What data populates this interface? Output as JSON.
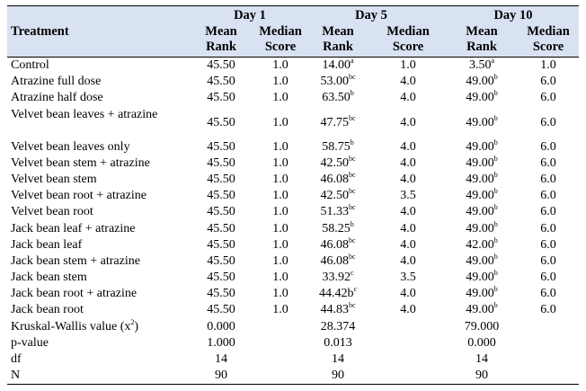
{
  "header": {
    "treatment": "Treatment",
    "day1": "Day 1",
    "day5": "Day 5",
    "day10": "Day 10",
    "mean_rank": "Mean Rank",
    "median_score": "Median Score"
  },
  "rows": [
    {
      "name": "Control",
      "d1_mean": "45.50",
      "d1_med": "1.0",
      "d5_mean": "14.00",
      "d5_sup": "a",
      "d5_med": "1.0",
      "d10_mean": "3.50",
      "d10_sup": "a",
      "d10_med": "1.0"
    },
    {
      "name": "Atrazine full dose",
      "d1_mean": "45.50",
      "d1_med": "1.0",
      "d5_mean": "53.00",
      "d5_sup": "bc",
      "d5_med": "4.0",
      "d10_mean": "49.00",
      "d10_sup": "b",
      "d10_med": "6.0"
    },
    {
      "name": "Atrazine half dose",
      "d1_mean": "45.50",
      "d1_med": "1.0",
      "d5_mean": "63.50",
      "d5_sup": "b",
      "d5_med": "4.0",
      "d10_mean": "49.00",
      "d10_sup": "b",
      "d10_med": "6.0"
    },
    {
      "name": "Velvet bean leaves + atrazine",
      "d1_mean": "45.50",
      "d1_med": "1.0",
      "d5_mean": "47.75",
      "d5_sup": "bc",
      "d5_med": "4.0",
      "d10_mean": "49.00",
      "d10_sup": "b",
      "d10_med": "6.0"
    },
    {
      "name": "Velvet bean leaves only",
      "d1_mean": "45.50",
      "d1_med": "1.0",
      "d5_mean": "58.75",
      "d5_sup": "b",
      "d5_med": "4.0",
      "d10_mean": "49.00",
      "d10_sup": "b",
      "d10_med": "6.0"
    },
    {
      "name": "Velvet bean stem + atrazine",
      "d1_mean": "45.50",
      "d1_med": "1.0",
      "d5_mean": "42.50",
      "d5_sup": "bc",
      "d5_med": "4.0",
      "d10_mean": "49.00",
      "d10_sup": "b",
      "d10_med": "6.0"
    },
    {
      "name": "Velvet bean stem",
      "d1_mean": "45.50",
      "d1_med": "1.0",
      "d5_mean": "46.08",
      "d5_sup": "bc",
      "d5_med": "4.0",
      "d10_mean": "49.00",
      "d10_sup": "b",
      "d10_med": "6.0"
    },
    {
      "name": "Velvet bean root + atrazine",
      "d1_mean": "45.50",
      "d1_med": "1.0",
      "d5_mean": "42.50",
      "d5_sup": "bc",
      "d5_med": "3.5",
      "d10_mean": "49.00",
      "d10_sup": "b",
      "d10_med": "6.0"
    },
    {
      "name": "Velvet bean root",
      "d1_mean": "45.50",
      "d1_med": "1.0",
      "d5_mean": "51.33",
      "d5_sup": "bc",
      "d5_med": "4.0",
      "d10_mean": "49.00",
      "d10_sup": "b",
      "d10_med": "6.0"
    },
    {
      "name": "Jack bean leaf + atrazine",
      "d1_mean": "45.50",
      "d1_med": "1.0",
      "d5_mean": "58.25",
      "d5_sup": "b",
      "d5_med": "4.0",
      "d10_mean": "49.00",
      "d10_sup": "b",
      "d10_med": "6.0"
    },
    {
      "name": "Jack bean leaf",
      "d1_mean": "45.50",
      "d1_med": "1.0",
      "d5_mean": "46.08",
      "d5_sup": "bc",
      "d5_med": "4.0",
      "d10_mean": "42.00",
      "d10_sup": "b",
      "d10_med": "6.0"
    },
    {
      "name": "Jack bean stem + atrazine",
      "d1_mean": "45.50",
      "d1_med": "1.0",
      "d5_mean": "46.08",
      "d5_sup": "bc",
      "d5_med": "4.0",
      "d10_mean": "49.00",
      "d10_sup": "b",
      "d10_med": "6.0"
    },
    {
      "name": "Jack bean stem",
      "d1_mean": "45.50",
      "d1_med": "1.0",
      "d5_mean": "33.92",
      "d5_sup": "c",
      "d5_med": "3.5",
      "d10_mean": "49.00",
      "d10_sup": "b",
      "d10_med": "6.0"
    },
    {
      "name": "Jack bean root + atrazine",
      "d1_mean": "45.50",
      "d1_med": "1.0",
      "d5_mean": "44.42b",
      "d5_sup": "c",
      "d5_med": "4.0",
      "d10_mean": "49.00",
      "d10_sup": "b",
      "d10_med": "6.0"
    },
    {
      "name": "Jack bean root",
      "d1_mean": "45.50",
      "d1_med": "1.0",
      "d5_mean": "44.83",
      "d5_sup": "bc",
      "d5_med": "4.0",
      "d10_mean": "49.00",
      "d10_sup": "b",
      "d10_med": "6.0"
    }
  ],
  "stats": [
    {
      "name": "Kruskal-Wallis value (x",
      "name_sup": "2",
      "name_end": ")",
      "d1": "0.000",
      "d5": "28.374",
      "d10": "79.000"
    },
    {
      "name": "p-value",
      "d1": "1.000",
      "d5": "0.013",
      "d10": "0.000"
    },
    {
      "name": "df",
      "d1": "14",
      "d5": "14",
      "d10": "14"
    },
    {
      "name": "N",
      "d1": "90",
      "d5": "90",
      "d10": "90"
    }
  ]
}
